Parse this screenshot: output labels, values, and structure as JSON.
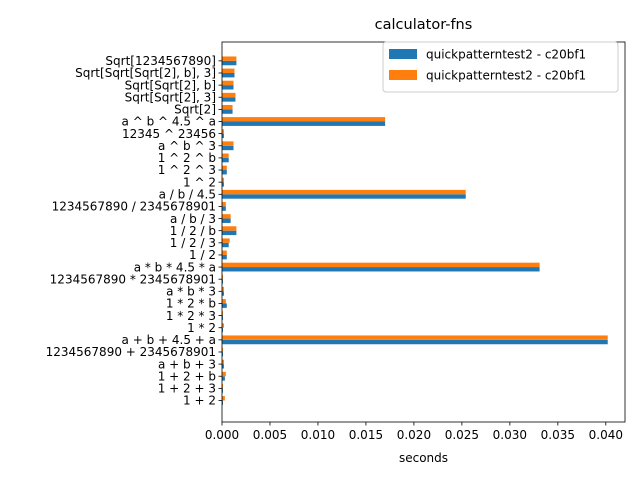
{
  "chart_data": {
    "type": "bar",
    "orientation": "horizontal",
    "title": "calculator-fns",
    "xlabel": "seconds",
    "ylabel": "",
    "xlim": [
      0,
      0.042
    ],
    "xticks": [
      "0.000",
      "0.005",
      "0.010",
      "0.015",
      "0.020",
      "0.025",
      "0.030",
      "0.035",
      "0.040"
    ],
    "xtick_values": [
      0,
      0.005,
      0.01,
      0.015,
      0.02,
      0.025,
      0.03,
      0.035,
      0.04
    ],
    "legend_position": "top-right",
    "grid": false,
    "categories": [
      "1 + 2",
      "1 + 2 + 3",
      "1 + 2 + b",
      "a + b + 3",
      "1234567890 + 2345678901",
      "a + b + 4.5 + a",
      "1 * 2",
      "1 * 2 * 3",
      "1 * 2 * b",
      "a * b * 3",
      "1234567890 * 2345678901",
      "a * b * 4.5 * a",
      "1 / 2",
      "1 / 2 / 3",
      "1 / 2 / b",
      "a / b / 3",
      "1234567890 / 2345678901",
      "a / b / 4.5",
      "1 ^ 2",
      "1 ^ 2 ^ 3",
      "1 ^ 2 ^ b",
      "a ^ b ^ 3",
      "12345 ^ 23456",
      "a ^ b ^ 4.5 ^ a",
      "Sqrt[2]",
      "Sqrt[Sqrt[2], 3]",
      "Sqrt[Sqrt[2], b]",
      "Sqrt[Sqrt[Sqrt[2], b], 3]",
      "Sqrt[1234567890]"
    ],
    "series": [
      {
        "name": "quickpatterntest2 - c20bf1",
        "color": "#1f77b4",
        "values": [
          0.0001,
          0.0001,
          0.0003,
          0.0002,
          0.0001,
          0.0402,
          0.0001,
          0.0001,
          0.0005,
          0.0002,
          0.0001,
          0.0331,
          0.0005,
          0.0007,
          0.0015,
          0.0009,
          0.0004,
          0.0254,
          0.0002,
          0.0005,
          0.0007,
          0.0012,
          0.0002,
          0.017,
          0.0011,
          0.0014,
          0.0012,
          0.0013,
          0.0015
        ]
      },
      {
        "name": "quickpatterntest2 - c20bf1",
        "color": "#ff7f0e",
        "values": [
          0.0003,
          0.0001,
          0.0004,
          0.0002,
          0.0001,
          0.0402,
          0.0002,
          0.0001,
          0.0004,
          0.0002,
          0.0001,
          0.0331,
          0.0005,
          0.0008,
          0.0015,
          0.0009,
          0.0004,
          0.0254,
          0.0002,
          0.0005,
          0.0007,
          0.0012,
          0.0002,
          0.017,
          0.0011,
          0.0014,
          0.0012,
          0.0013,
          0.0015
        ]
      }
    ]
  }
}
